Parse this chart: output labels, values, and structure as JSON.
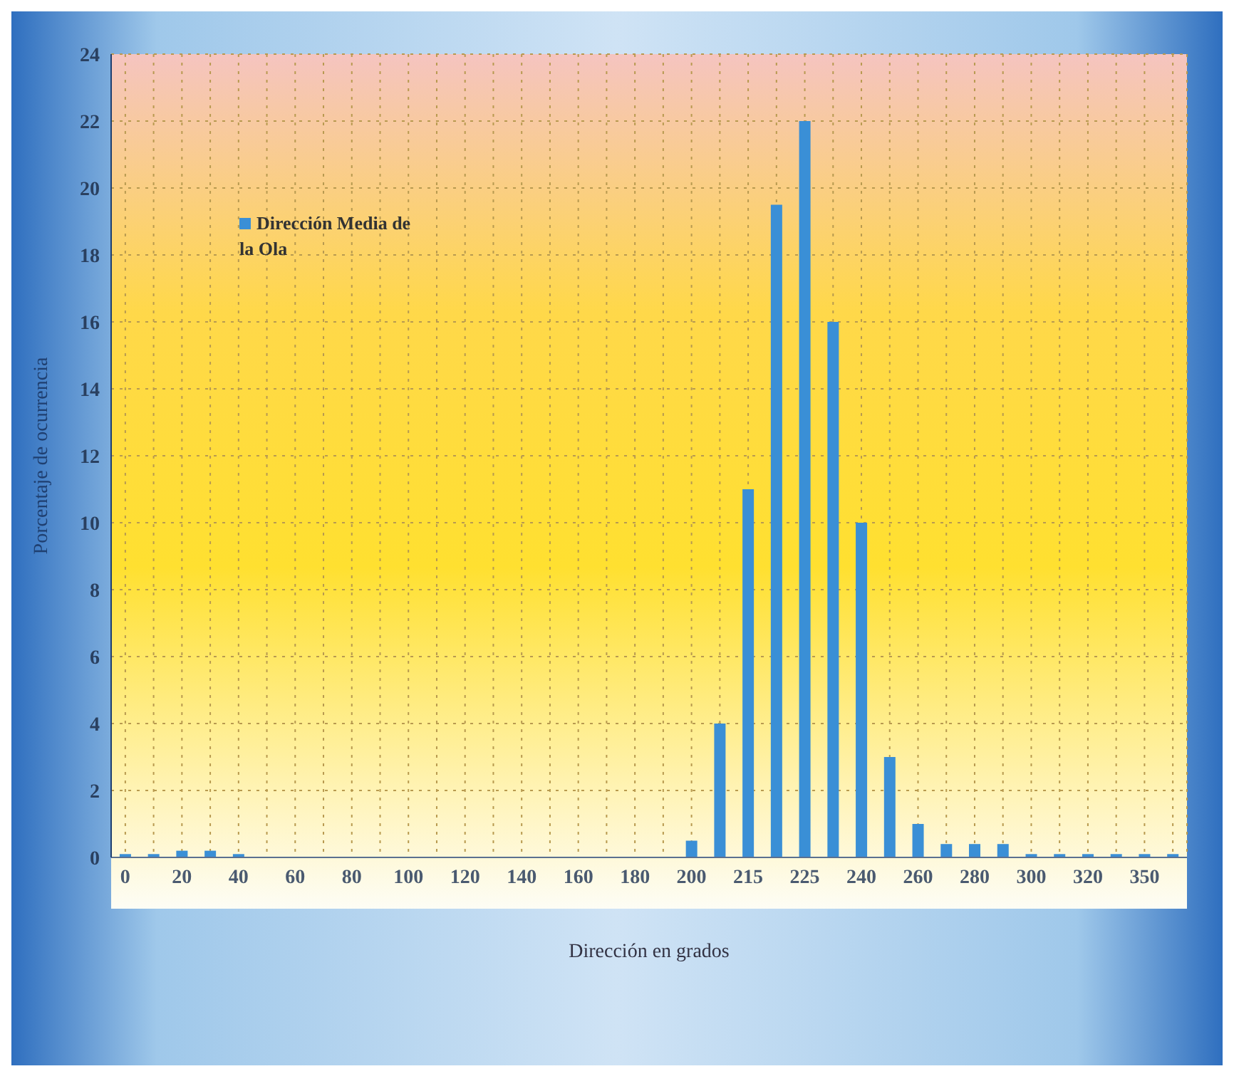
{
  "chart_data": {
    "type": "bar",
    "xlabel": "Dirección en grados",
    "ylabel": "Porcentaje de ocurrencia",
    "categories": [
      "0",
      null,
      "20",
      null,
      "40",
      null,
      "60",
      null,
      "80",
      null,
      "100",
      null,
      "120",
      null,
      "140",
      null,
      "160",
      null,
      "180",
      null,
      "200",
      null,
      "215",
      null,
      "225",
      null,
      "240",
      null,
      "260",
      null,
      "280",
      null,
      "300",
      null,
      "320",
      null,
      "350",
      null
    ],
    "series": [
      {
        "name": "Dirección Media de la Ola",
        "color": "#3a8fd6",
        "values": [
          0.1,
          0.1,
          0.2,
          0.2,
          0.1,
          0,
          0,
          0,
          0,
          0,
          0,
          0,
          0,
          0,
          0,
          0,
          0,
          0,
          0,
          0,
          0.5,
          4,
          11,
          19.5,
          22,
          16,
          10,
          3,
          1,
          0.4,
          0.4,
          0.4,
          0.1,
          0.1,
          0.1,
          0.1,
          0.1,
          0.1
        ]
      }
    ],
    "ylim": [
      0,
      24
    ],
    "yticks": [
      0,
      2,
      4,
      6,
      8,
      10,
      12,
      14,
      16,
      18,
      20,
      22,
      24
    ],
    "grid": true,
    "legend": "top left"
  }
}
